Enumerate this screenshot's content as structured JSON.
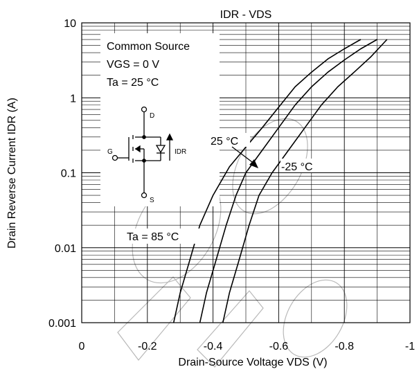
{
  "chart_data": {
    "type": "line",
    "title": "IDR - VDS",
    "xlabel": "Drain-Source Voltage VDS (V)",
    "ylabel": "Drain Reverse Current IDR  (A)",
    "x_scale": "linear",
    "y_scale": "log",
    "xlim": [
      0,
      -1
    ],
    "ylim": [
      0.001,
      10
    ],
    "grid": true,
    "x_ticks": [
      "0",
      "-0.2",
      "-0.4",
      "-0.6",
      "-0.8",
      "-1"
    ],
    "y_ticks": [
      "10",
      "1",
      "0.1",
      "0.01",
      "0.001"
    ],
    "conditions": [
      "Common Source",
      "VGS = 0 V",
      "Ta = 25 °C"
    ],
    "circuit_labels": {
      "drain": "D",
      "gate": "G",
      "source": "S",
      "current": "IDR"
    },
    "annotations": [
      "25 °C",
      "-25 °C",
      "Ta = 85 °C"
    ],
    "series": [
      {
        "name": "Ta = 85 °C",
        "x": [
          -0.28,
          -0.3,
          -0.33,
          -0.36,
          -0.4,
          -0.45,
          -0.5,
          -0.55,
          -0.6,
          -0.65,
          -0.7,
          -0.75,
          -0.8,
          -0.85
        ],
        "y": [
          0.001,
          0.0025,
          0.007,
          0.02,
          0.05,
          0.12,
          0.22,
          0.4,
          0.75,
          1.4,
          2.2,
          3.3,
          4.5,
          6
        ]
      },
      {
        "name": "25 °C",
        "x": [
          -0.36,
          -0.38,
          -0.41,
          -0.44,
          -0.47,
          -0.5,
          -0.55,
          -0.6,
          -0.65,
          -0.7,
          -0.75,
          -0.8,
          -0.85,
          -0.9
        ],
        "y": [
          0.001,
          0.0025,
          0.007,
          0.02,
          0.05,
          0.1,
          0.2,
          0.4,
          0.8,
          1.4,
          2.2,
          3.2,
          4.5,
          6
        ]
      },
      {
        "name": "-25 °C",
        "x": [
          -0.43,
          -0.45,
          -0.48,
          -0.51,
          -0.54,
          -0.58,
          -0.63,
          -0.68,
          -0.73,
          -0.78,
          -0.83,
          -0.88,
          -0.93
        ],
        "y": [
          0.001,
          0.0025,
          0.007,
          0.02,
          0.05,
          0.1,
          0.2,
          0.4,
          0.8,
          1.4,
          2.2,
          3.5,
          6
        ]
      }
    ]
  }
}
